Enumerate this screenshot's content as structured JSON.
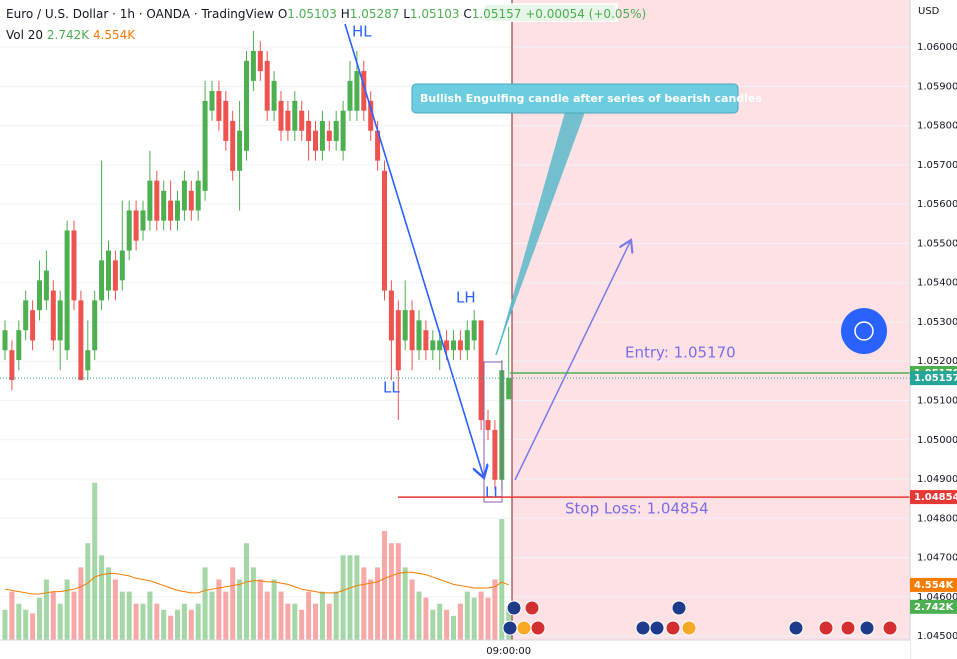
{
  "chart_data": {
    "type": "candlestick",
    "header": {
      "title": "Euro / U.S. Dollar · 1h · OANDA · TradingView",
      "ohlc": [
        {
          "key": "O",
          "value": "1.05103"
        },
        {
          "key": "H",
          "value": "1.05287"
        },
        {
          "key": "L",
          "value": "1.05103"
        },
        {
          "key": "C",
          "value": "1.05157"
        }
      ],
      "change": "+0.00054 (+0.05%)"
    },
    "currency": "USD",
    "up_color": "#4caf50",
    "down_color": "#ef5350",
    "categories": [
      null,
      null,
      null,
      null,
      null,
      null,
      null,
      null,
      null,
      null,
      null,
      null,
      null,
      null,
      null,
      null,
      null,
      null,
      null,
      null,
      null,
      null,
      null,
      null,
      null,
      null,
      null,
      null,
      null,
      null,
      null,
      null,
      null,
      null,
      null,
      null,
      null,
      null,
      null,
      null,
      null,
      null,
      null,
      null,
      null,
      null,
      null,
      null,
      null,
      null,
      null,
      null,
      null,
      null,
      null,
      null,
      null,
      null,
      null,
      null,
      null,
      null,
      null,
      null,
      null,
      null,
      null,
      null,
      null,
      null,
      null,
      null,
      null,
      "09:00:00"
    ],
    "candles": [
      [
        1.05228,
        1.05304,
        1.05203,
        1.05279
      ],
      [
        1.05228,
        1.05253,
        1.05126,
        1.05152
      ],
      [
        1.05203,
        1.05304,
        1.05177,
        1.05279
      ],
      [
        1.05279,
        1.0538,
        1.05253,
        1.05355
      ],
      [
        1.0533,
        1.05355,
        1.05228,
        1.05253
      ],
      [
        1.0533,
        1.05457,
        1.05304,
        1.05406
      ],
      [
        1.05355,
        1.05482,
        1.0533,
        1.05431
      ],
      [
        1.0538,
        1.05406,
        1.05228,
        1.05253
      ],
      [
        1.05253,
        1.0538,
        1.05177,
        1.05355
      ],
      [
        1.05228,
        1.05558,
        1.05203,
        1.05533
      ],
      [
        1.05533,
        1.05558,
        1.0533,
        1.05355
      ],
      [
        1.05355,
        1.0538,
        1.05152,
        1.05152
      ],
      [
        1.05177,
        1.05304,
        1.05152,
        1.05228
      ],
      [
        1.05228,
        1.0538,
        1.05203,
        1.05355
      ],
      [
        1.05355,
        1.05711,
        1.0533,
        1.05457
      ],
      [
        1.0538,
        1.05507,
        1.05355,
        1.05482
      ],
      [
        1.05457,
        1.05482,
        1.05355,
        1.0538
      ],
      [
        1.05406,
        1.05609,
        1.0538,
        1.05482
      ],
      [
        1.05482,
        1.05609,
        1.05457,
        1.05584
      ],
      [
        1.05584,
        1.05609,
        1.05482,
        1.05507
      ],
      [
        1.05533,
        1.05609,
        1.05507,
        1.05584
      ],
      [
        1.05558,
        1.05736,
        1.05533,
        1.0566
      ],
      [
        1.0566,
        1.05685,
        1.05533,
        1.05558
      ],
      [
        1.05558,
        1.0566,
        1.05533,
        1.05634
      ],
      [
        1.05609,
        1.0566,
        1.05533,
        1.05558
      ],
      [
        1.05558,
        1.05634,
        1.05533,
        1.05609
      ],
      [
        1.05584,
        1.05685,
        1.05558,
        1.0566
      ],
      [
        1.05634,
        1.0566,
        1.05558,
        1.05584
      ],
      [
        1.05584,
        1.05685,
        1.05558,
        1.0566
      ],
      [
        1.05634,
        1.05914,
        1.05609,
        1.05863
      ],
      [
        1.05838,
        1.05914,
        1.05812,
        1.05888
      ],
      [
        1.05888,
        1.05914,
        1.05787,
        1.05812
      ],
      [
        1.05863,
        1.05888,
        1.05736,
        1.05761
      ],
      [
        1.05812,
        1.05838,
        1.0566,
        1.05685
      ],
      [
        1.05685,
        1.05863,
        1.05584,
        1.05787
      ],
      [
        1.05736,
        1.0599,
        1.05711,
        1.05965
      ],
      [
        1.05914,
        1.06041,
        1.05888,
        1.0599
      ],
      [
        1.0599,
        1.06015,
        1.05914,
        1.05939
      ],
      [
        1.05965,
        1.0599,
        1.05812,
        1.05838
      ],
      [
        1.05838,
        1.05939,
        1.05812,
        1.05914
      ],
      [
        1.05863,
        1.05888,
        1.05761,
        1.05787
      ],
      [
        1.05838,
        1.05863,
        1.05761,
        1.05787
      ],
      [
        1.05787,
        1.05888,
        1.05761,
        1.05863
      ],
      [
        1.05838,
        1.05863,
        1.05761,
        1.05787
      ],
      [
        1.05812,
        1.05838,
        1.05711,
        1.05761
      ],
      [
        1.05787,
        1.05812,
        1.05711,
        1.05736
      ],
      [
        1.05736,
        1.05838,
        1.05711,
        1.05812
      ],
      [
        1.05787,
        1.05812,
        1.05736,
        1.05761
      ],
      [
        1.05761,
        1.05838,
        1.05736,
        1.05812
      ],
      [
        1.05736,
        1.05863,
        1.05711,
        1.05838
      ],
      [
        1.05838,
        1.05965,
        1.05812,
        1.05914
      ],
      [
        1.05838,
        1.0599,
        1.05812,
        1.05939
      ],
      [
        1.05939,
        1.05965,
        1.05812,
        1.05838
      ],
      [
        1.05863,
        1.05888,
        1.05761,
        1.05787
      ],
      [
        1.05787,
        1.05812,
        1.05685,
        1.05711
      ],
      [
        1.05685,
        1.05711,
        1.05355,
        1.0538
      ],
      [
        1.0538,
        1.05406,
        1.05152,
        1.05253
      ],
      [
        1.0533,
        1.05355,
        1.0505,
        1.05177
      ],
      [
        1.05253,
        1.05406,
        1.05228,
        1.0533
      ],
      [
        1.0533,
        1.05355,
        1.05177,
        1.05228
      ],
      [
        1.05228,
        1.0533,
        1.05203,
        1.05304
      ],
      [
        1.05279,
        1.05304,
        1.05203,
        1.05228
      ],
      [
        1.05228,
        1.05279,
        1.05203,
        1.05253
      ],
      [
        1.05228,
        1.05279,
        1.05177,
        1.05253
      ],
      [
        1.05253,
        1.05279,
        1.05203,
        1.05228
      ],
      [
        1.05228,
        1.05279,
        1.05203,
        1.05253
      ],
      [
        1.05253,
        1.05279,
        1.05203,
        1.05228
      ],
      [
        1.05228,
        1.05304,
        1.05203,
        1.05279
      ],
      [
        1.05253,
        1.0533,
        1.05228,
        1.05304
      ],
      [
        1.05304,
        1.05304,
        1.05025,
        1.0505
      ],
      [
        1.0505,
        1.05076,
        1.04999,
        1.05025
      ],
      [
        1.05025,
        1.0505,
        1.04873,
        1.04898
      ],
      [
        1.04898,
        1.05203,
        1.04873,
        1.05177
      ],
      [
        1.05103,
        1.05287,
        1.05103,
        1.05157
      ]
    ],
    "ylim": [
      1.0449,
      1.0612
    ],
    "yticks": [
      {
        "value": 1.045,
        "label": "1.04500"
      },
      {
        "value": 1.046,
        "label": "1.04600"
      },
      {
        "value": 1.047,
        "label": "1.04700"
      },
      {
        "value": 1.048,
        "label": "1.04800"
      },
      {
        "value": 1.049,
        "label": "1.04900"
      },
      {
        "value": 1.05,
        "label": "1.05000"
      },
      {
        "value": 1.051,
        "label": "1.05100"
      },
      {
        "value": 1.052,
        "label": "1.05200"
      },
      {
        "value": 1.053,
        "label": "1.05300"
      },
      {
        "value": 1.054,
        "label": "1.05400"
      },
      {
        "value": 1.055,
        "label": "1.05500"
      },
      {
        "value": 1.056,
        "label": "1.05600"
      },
      {
        "value": 1.057,
        "label": "1.05700"
      },
      {
        "value": 1.058,
        "label": "1.05800"
      },
      {
        "value": 1.059,
        "label": "1.05900"
      },
      {
        "value": 1.06,
        "label": "1.06000"
      }
    ],
    "grid": true,
    "volume": {
      "name": "Vol 20",
      "value_label": "2.742K",
      "ma_label": "4.554K",
      "ma_color": "#f57c00",
      "lim": [
        0,
        52.9
      ],
      "values": [
        2.5,
        4,
        3,
        2.5,
        2.2,
        3.5,
        5,
        4,
        3,
        5,
        4,
        6,
        8,
        13,
        7,
        6,
        5,
        4,
        4,
        3,
        3,
        4,
        3,
        2.5,
        2,
        2.5,
        3,
        2.5,
        3,
        6,
        4,
        5,
        4,
        6,
        5,
        8,
        6,
        5,
        4,
        5,
        4,
        3,
        3,
        2.5,
        4,
        3,
        4,
        3,
        4,
        7,
        7,
        7,
        6,
        5,
        6,
        9,
        8,
        8,
        6,
        5,
        4,
        3.5,
        2.5,
        3,
        2.5,
        2,
        3,
        4,
        3.5,
        4,
        3.5,
        5,
        10,
        2.742
      ],
      "ma": [
        4.2,
        4.1,
        4.0,
        3.9,
        3.8,
        3.8,
        3.9,
        4.0,
        4.0,
        4.1,
        4.2,
        4.4,
        4.7,
        5.2,
        5.4,
        5.5,
        5.5,
        5.4,
        5.3,
        5.1,
        5.0,
        4.9,
        4.7,
        4.5,
        4.3,
        4.1,
        4.0,
        3.9,
        3.9,
        4.1,
        4.2,
        4.3,
        4.4,
        4.5,
        4.6,
        4.8,
        4.9,
        4.9,
        4.8,
        4.8,
        4.7,
        4.6,
        4.4,
        4.2,
        4.1,
        4.0,
        3.9,
        3.9,
        3.9,
        4.1,
        4.3,
        4.5,
        4.6,
        4.7,
        4.8,
        5.1,
        5.3,
        5.5,
        5.6,
        5.6,
        5.5,
        5.4,
        5.2,
        5.0,
        4.8,
        4.6,
        4.5,
        4.4,
        4.3,
        4.3,
        4.3,
        4.4,
        4.8,
        4.554
      ]
    },
    "levels": [
      {
        "value": 1.0517,
        "label": "1.05170",
        "text": "Entry: 1.05170",
        "color": "#4caf50"
      },
      {
        "value": 1.05157,
        "label": "1.05157",
        "color": "#26a69a"
      },
      {
        "value": 1.04854,
        "label": "1.04854",
        "text": "Stop Loss: 1.04854",
        "color": "#e53935"
      }
    ],
    "annotations": [
      "HL",
      "LH",
      "LL",
      "LL",
      "Bullish Engulfing candle after series of bearish candles"
    ]
  }
}
